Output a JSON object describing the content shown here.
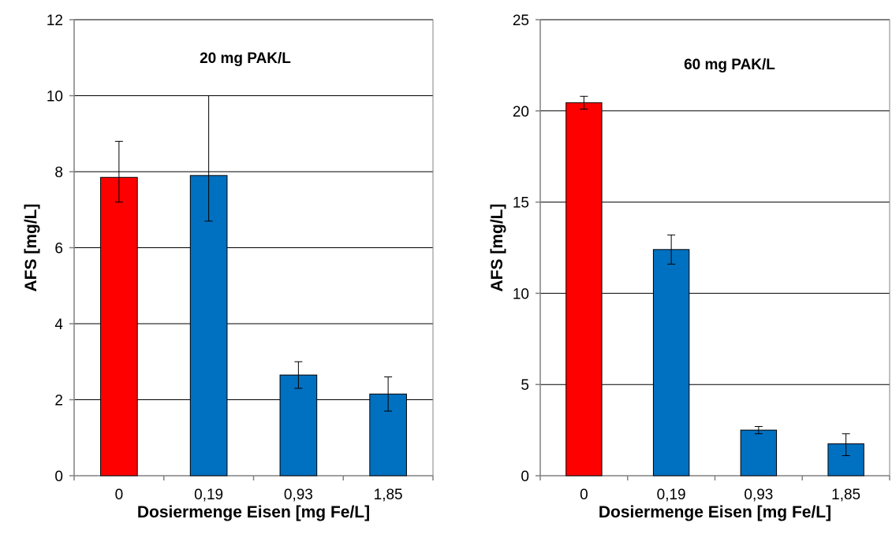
{
  "chart_data": [
    {
      "type": "bar",
      "title": "20 mg PAK/L",
      "xlabel": "Dosiermenge Eisen [mg Fe/L]",
      "ylabel": "AFS [mg/L]",
      "categories": [
        "0",
        "0,19",
        "0,93",
        "1,85"
      ],
      "values": [
        7.85,
        7.9,
        2.65,
        2.15
      ],
      "error_low": [
        7.2,
        6.7,
        2.3,
        1.7
      ],
      "error_high": [
        8.8,
        10.0,
        3.0,
        2.6
      ],
      "colors": [
        "#ff0000",
        "#0070c0",
        "#0070c0",
        "#0070c0"
      ],
      "ylim": [
        0,
        12
      ],
      "yticks": [
        0,
        2,
        4,
        6,
        8,
        10,
        12
      ],
      "grid": true
    },
    {
      "type": "bar",
      "title": "60 mg PAK/L",
      "xlabel": "Dosiermenge Eisen [mg Fe/L]",
      "ylabel": "AFS [mg/L]",
      "categories": [
        "0",
        "0,19",
        "0,93",
        "1,85"
      ],
      "values": [
        20.45,
        12.4,
        2.5,
        1.75
      ],
      "error_low": [
        20.1,
        11.6,
        2.3,
        1.1
      ],
      "error_high": [
        20.8,
        13.2,
        2.7,
        2.3
      ],
      "colors": [
        "#ff0000",
        "#0070c0",
        "#0070c0",
        "#0070c0"
      ],
      "ylim": [
        0,
        25
      ],
      "yticks": [
        0,
        5,
        10,
        15,
        20,
        25
      ],
      "grid": true
    }
  ]
}
